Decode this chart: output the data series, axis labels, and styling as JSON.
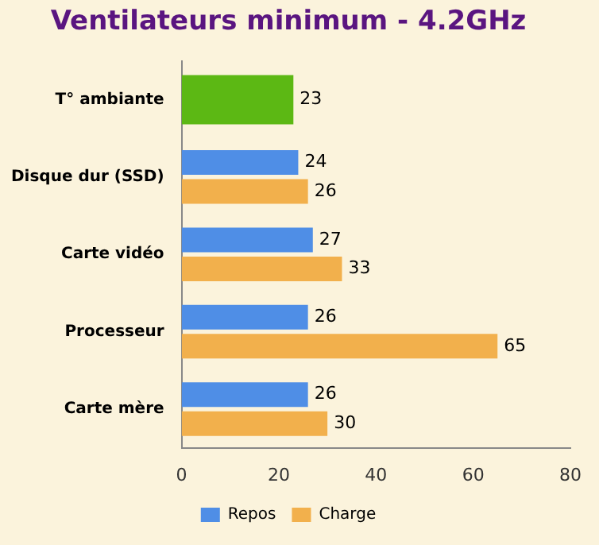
{
  "chart_data": {
    "type": "bar",
    "title": "Ventilateurs minimum - 4.2GHz",
    "orientation": "horizontal",
    "categories": [
      "T° ambiante",
      "Disque dur (SSD)",
      "Carte vidéo",
      "Processeur",
      "Carte mère"
    ],
    "series": [
      {
        "color": "#5cb814",
        "values": [
          23,
          null,
          null,
          null,
          null
        ]
      },
      {
        "name": "Repos",
        "color": "#4f8ee6",
        "values": [
          null,
          24,
          27,
          26,
          26
        ]
      },
      {
        "name": "Charge",
        "color": "#f2b04c",
        "values": [
          null,
          26,
          33,
          65,
          30
        ]
      }
    ],
    "xlim": [
      0,
      80
    ],
    "xticks": [
      0,
      20,
      40,
      60,
      80
    ],
    "grid": false,
    "legend": "bottom",
    "data_labels": true
  }
}
